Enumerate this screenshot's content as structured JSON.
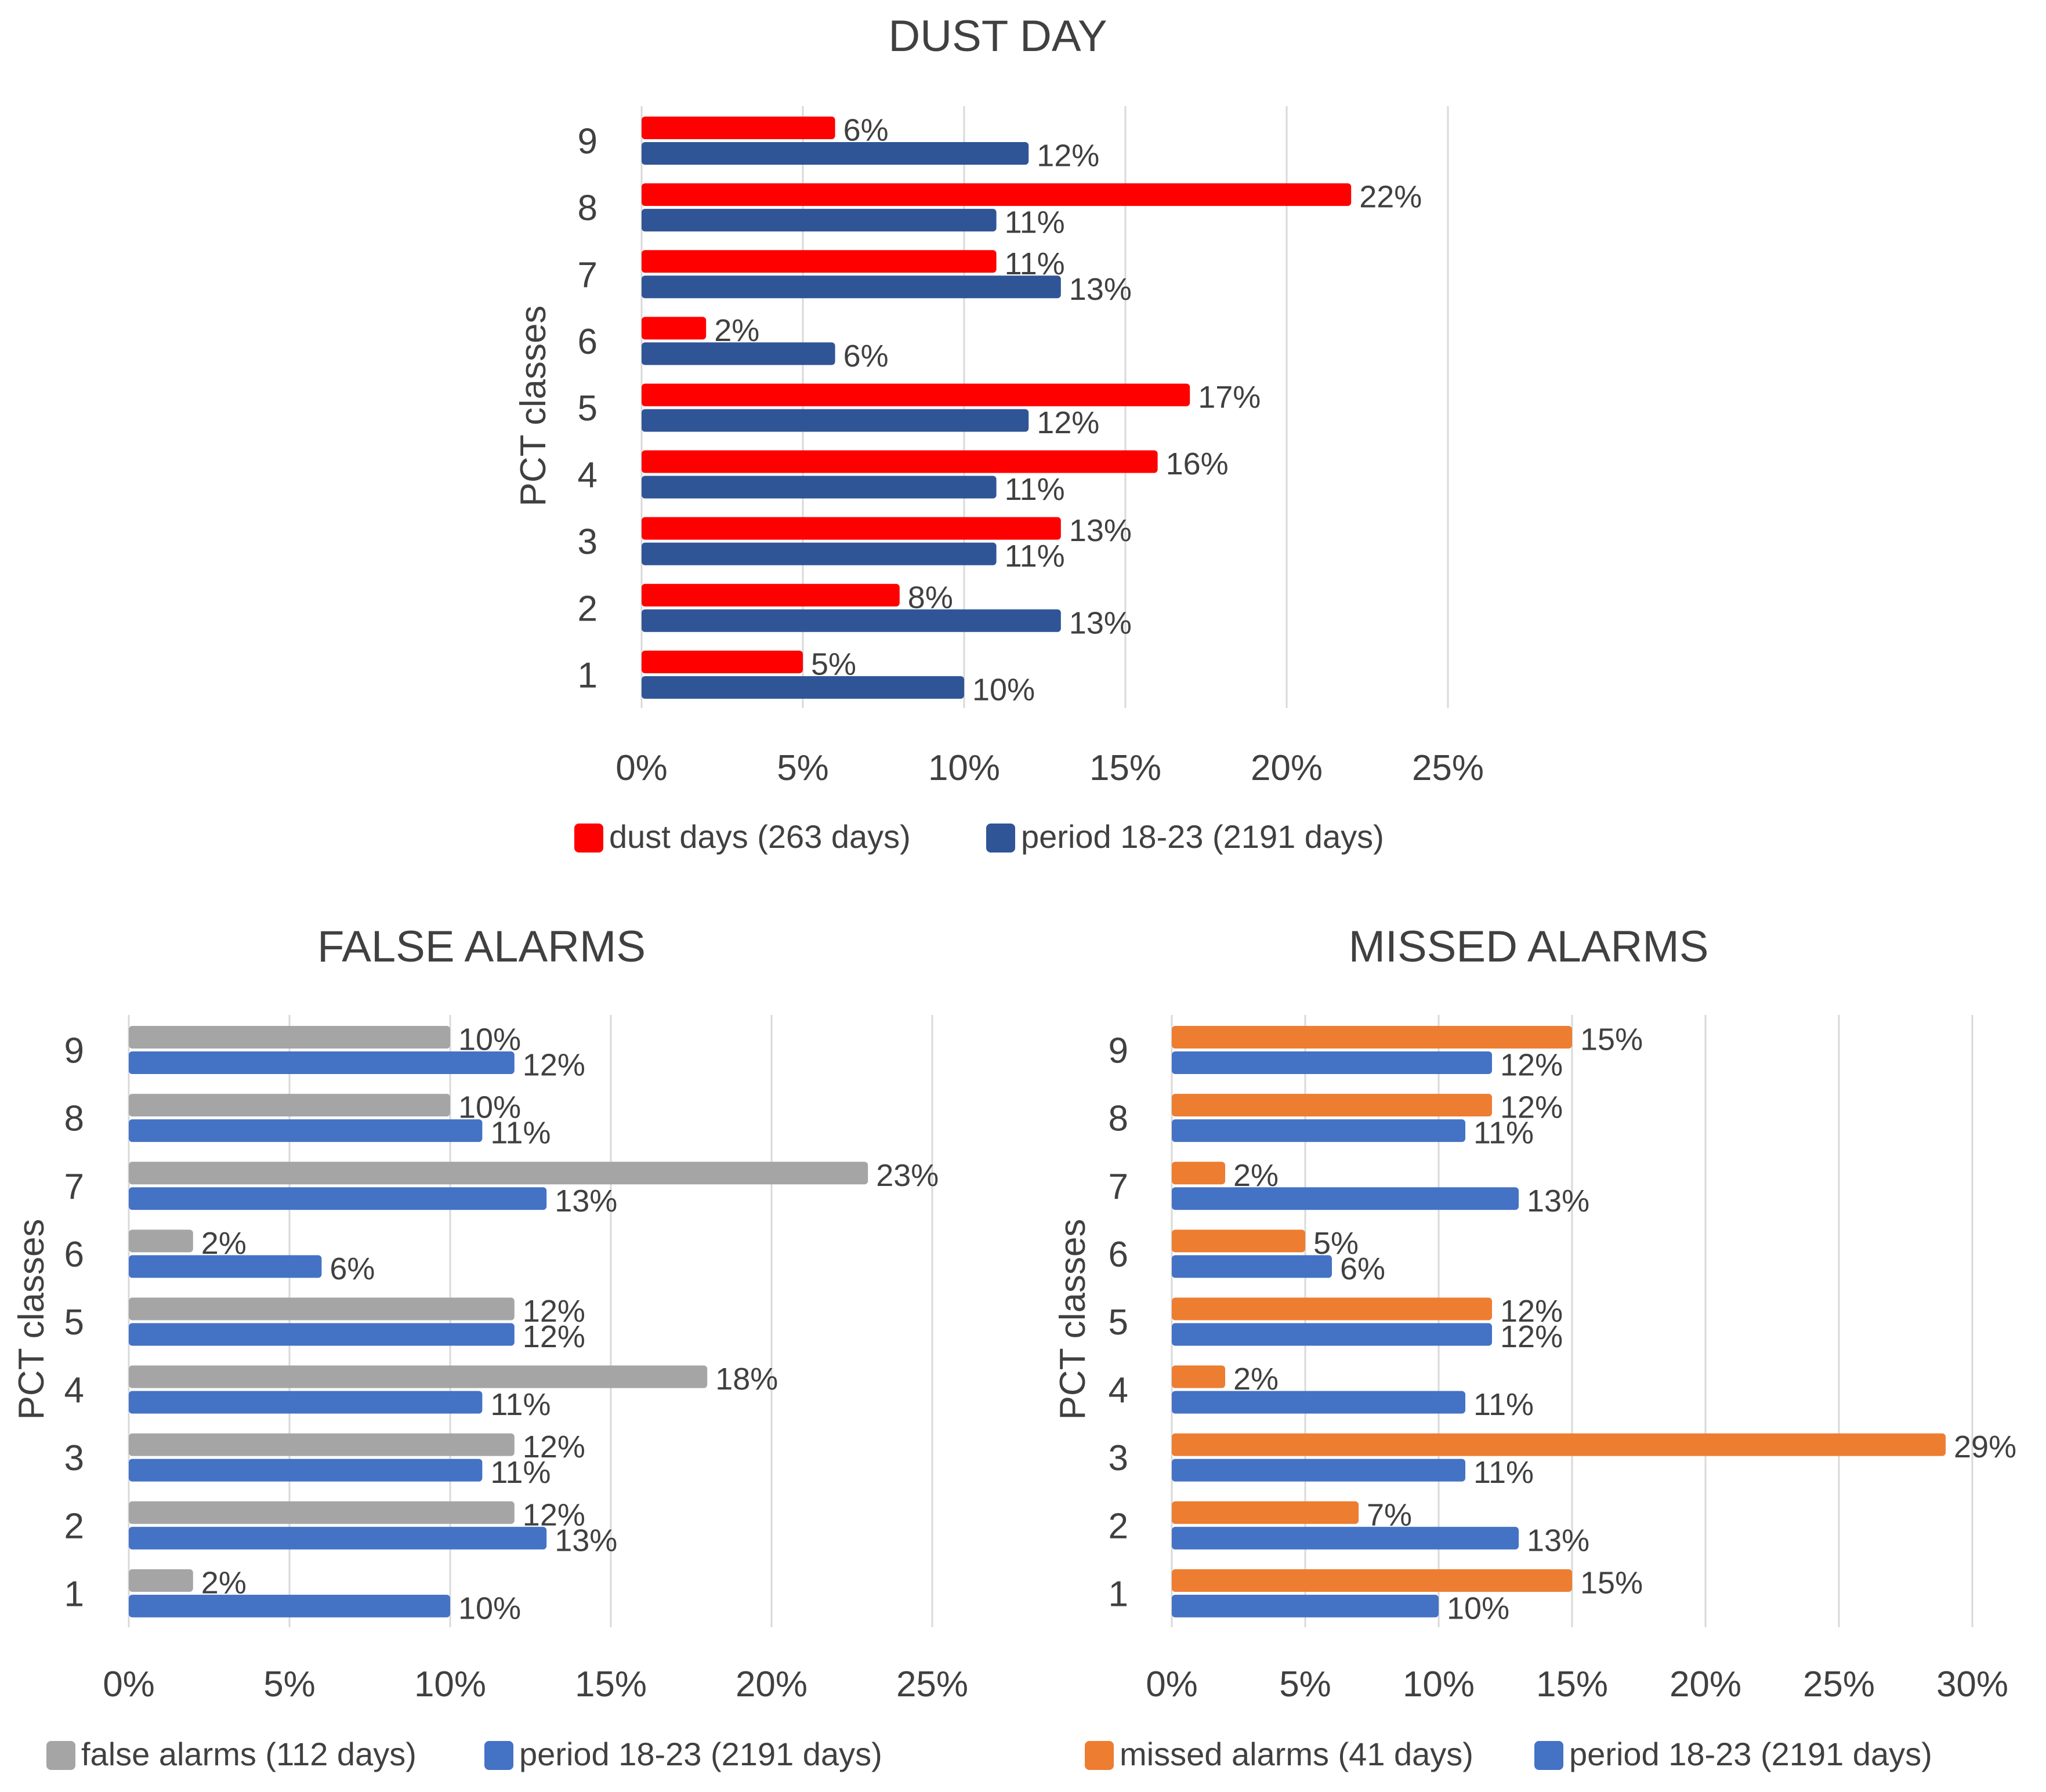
{
  "chart_data": [
    {
      "id": "dust",
      "type": "bar",
      "orientation": "horizontal",
      "title": "DUST DAY",
      "ylabel": "PCT classes",
      "xlabel": "",
      "categories": [
        "1",
        "2",
        "3",
        "4",
        "5",
        "6",
        "7",
        "8",
        "9"
      ],
      "series": [
        {
          "name": "dust days (263 days)",
          "color": "#ff0000",
          "values": [
            5,
            8,
            13,
            16,
            17,
            2,
            11,
            22,
            6
          ],
          "labels": [
            "5%",
            "8%",
            "13%",
            "16%",
            "17%",
            "2%",
            "11%",
            "22%",
            "6%"
          ]
        },
        {
          "name": "period 18-23 (2191 days)",
          "color": "#2f5597",
          "values": [
            10,
            13,
            11,
            11,
            12,
            6,
            13,
            11,
            12
          ],
          "labels": [
            "10%",
            "13%",
            "11%",
            "11%",
            "12%",
            "6%",
            "13%",
            "11%",
            "12%"
          ]
        }
      ],
      "xlim": [
        0,
        25
      ],
      "xticks": [
        "0%",
        "5%",
        "10%",
        "15%",
        "20%",
        "25%"
      ],
      "grid": true,
      "legend_position": "bottom"
    },
    {
      "id": "false",
      "type": "bar",
      "orientation": "horizontal",
      "title": "FALSE ALARMS",
      "ylabel": "PCT classes",
      "xlabel": "",
      "categories": [
        "1",
        "2",
        "3",
        "4",
        "5",
        "6",
        "7",
        "8",
        "9"
      ],
      "series": [
        {
          "name": "false alarms (112 days)",
          "color": "#a5a5a5",
          "values": [
            2,
            12,
            12,
            18,
            12,
            2,
            23,
            10,
            10
          ],
          "labels": [
            "2%",
            "12%",
            "12%",
            "18%",
            "12%",
            "2%",
            "23%",
            "10%",
            "10%"
          ]
        },
        {
          "name": "period 18-23 (2191 days)",
          "color": "#4472c4",
          "values": [
            10,
            13,
            11,
            11,
            12,
            6,
            13,
            11,
            12
          ],
          "labels": [
            "10%",
            "13%",
            "11%",
            "11%",
            "12%",
            "6%",
            "13%",
            "11%",
            "12%"
          ]
        }
      ],
      "xlim": [
        0,
        25
      ],
      "xticks": [
        "0%",
        "5%",
        "10%",
        "15%",
        "20%",
        "25%"
      ],
      "grid": true,
      "legend_position": "bottom"
    },
    {
      "id": "missed",
      "type": "bar",
      "orientation": "horizontal",
      "title": "MISSED ALARMS",
      "ylabel": "PCT classes",
      "xlabel": "",
      "categories": [
        "1",
        "2",
        "3",
        "4",
        "5",
        "6",
        "7",
        "8",
        "9"
      ],
      "series": [
        {
          "name": "missed alarms (41 days)",
          "color": "#ed7d31",
          "values": [
            15,
            7,
            29,
            2,
            12,
            5,
            2,
            12,
            15
          ],
          "labels": [
            "15%",
            "7%",
            "29%",
            "2%",
            "12%",
            "5%",
            "2%",
            "12%",
            "15%"
          ]
        },
        {
          "name": "period 18-23 (2191 days)",
          "color": "#4472c4",
          "values": [
            10,
            13,
            11,
            11,
            12,
            6,
            13,
            11,
            12
          ],
          "labels": [
            "10%",
            "13%",
            "11%",
            "11%",
            "12%",
            "6%",
            "13%",
            "11%",
            "12%"
          ]
        }
      ],
      "xlim": [
        0,
        30
      ],
      "xticks": [
        "0%",
        "5%",
        "10%",
        "15%",
        "20%",
        "25%",
        "30%"
      ],
      "grid": true,
      "legend_position": "bottom"
    }
  ]
}
